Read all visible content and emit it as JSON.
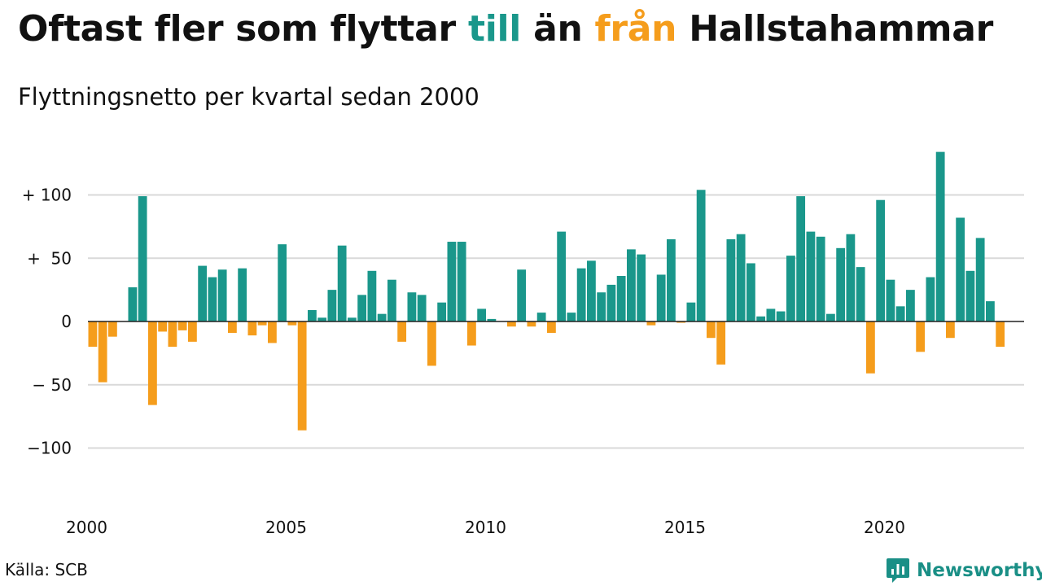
{
  "title": {
    "part1": "Oftast fler som flyttar ",
    "highlight_in": "till",
    "part2": " än ",
    "highlight_out": "från",
    "part3": " Hallstahammar"
  },
  "subtitle": "Flyttningsnetto per kvartal sedan 2000",
  "source": "Källa: SCB",
  "brand": {
    "name": "Newsworthy",
    "icon": "newsworthy-logo-icon"
  },
  "colors": {
    "positive": "#1a978b",
    "negative": "#f59d1c",
    "grid": "#d9d9d9",
    "zero_line": "#222222"
  },
  "chart_data": {
    "type": "bar",
    "title": "Oftast fler som flyttar till än från Hallstahammar",
    "subtitle": "Flyttningsnetto per kvartal sedan 2000",
    "xlabel": "",
    "ylabel": "",
    "x_start": "2000-Q1",
    "x_tick_labels": [
      "2000",
      "2005",
      "2010",
      "2015",
      "2020"
    ],
    "y_ticks": [
      100,
      50,
      0,
      -50,
      -100
    ],
    "y_tick_labels": [
      "+ 100",
      "+  50",
      "0",
      "− 50",
      "−100"
    ],
    "ylim": [
      -135,
      135
    ],
    "grid": true,
    "values": [
      -20,
      -48,
      -12,
      0,
      27,
      99,
      -66,
      -8,
      -20,
      -7,
      -16,
      44,
      35,
      41,
      -9,
      42,
      -11,
      -3,
      -17,
      61,
      -3,
      -86,
      9,
      3,
      25,
      60,
      3,
      21,
      40,
      6,
      33,
      -16,
      23,
      21,
      -35,
      15,
      63,
      63,
      -19,
      10,
      2,
      0,
      -4,
      41,
      -4,
      7,
      -9,
      71,
      7,
      42,
      48,
      23,
      29,
      36,
      57,
      53,
      -3,
      37,
      65,
      -1,
      15,
      104,
      -13,
      -34,
      65,
      69,
      46,
      4,
      10,
      8,
      52,
      99,
      71,
      67,
      6,
      58,
      69,
      43,
      -41,
      96,
      33,
      12,
      25,
      -24,
      35,
      134,
      -13,
      82,
      40,
      66,
      16,
      -20
    ]
  }
}
